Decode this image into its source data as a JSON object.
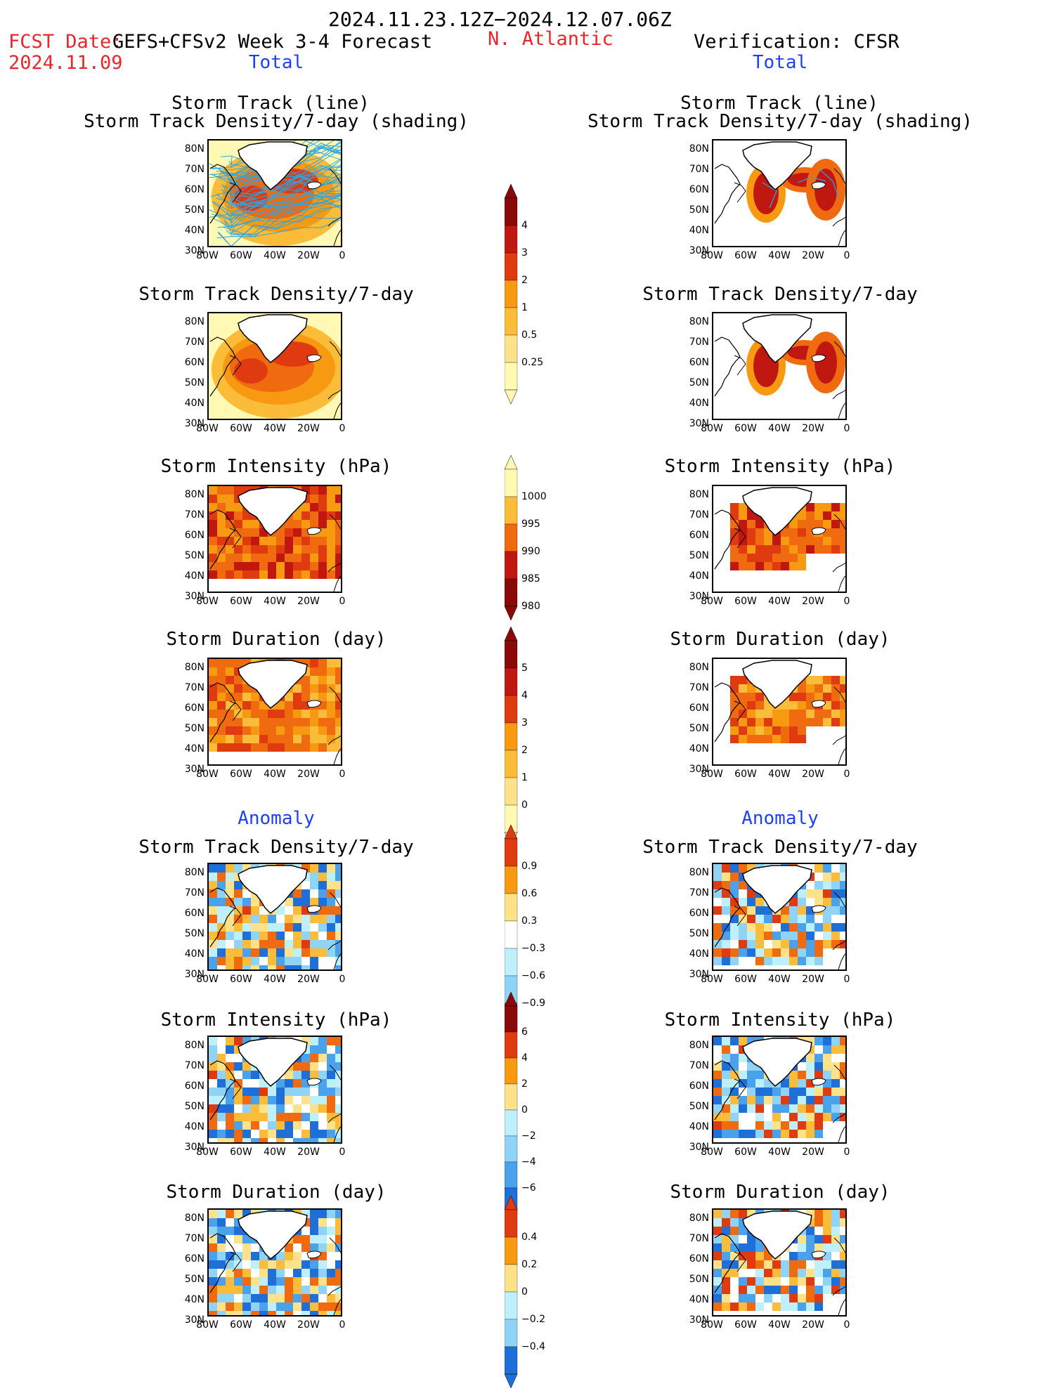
{
  "header": {
    "period": "2024.11.23.12Z−2024.12.07.06Z",
    "fcst_label": "FCST Date:",
    "fcst_model": "GEFS+CFSv2 Week 3-4 Forecast",
    "fcst_date": "2024.11.09",
    "region": "N. Atlantic",
    "verification": "Verification: CFSR",
    "left_total": "Total",
    "right_total": "Total",
    "left_anomaly": "Anomaly",
    "right_anomaly": "Anomaly"
  },
  "panel_titles": {
    "track_line": "Storm Track (line)",
    "track_shading": "Storm Track Density/7-day (shading)",
    "density": "Storm Track Density/7-day",
    "intensity": "Storm Intensity (hPa)",
    "duration": "Storm Duration (day)"
  },
  "axes": {
    "lat_ticks": [
      "80N",
      "70N",
      "60N",
      "50N",
      "40N",
      "30N"
    ],
    "lon_ticks": [
      "80W",
      "60W",
      "40W",
      "20W",
      "0"
    ]
  },
  "colorbars": {
    "density_total": [
      "4",
      "3",
      "2",
      "1",
      "0.5",
      "0.25"
    ],
    "intensity_total": [
      "1000",
      "995",
      "990",
      "985",
      "980"
    ],
    "duration_total": [
      "5",
      "4",
      "3",
      "2",
      "1",
      "0"
    ],
    "density_anom": [
      "0.9",
      "0.6",
      "0.3",
      "−0.3",
      "−0.6",
      "−0.9"
    ],
    "intensity_anom": [
      "6",
      "4",
      "2",
      "0",
      "−2",
      "−4",
      "−6"
    ],
    "duration_anom": [
      "0.4",
      "0.2",
      "0",
      "−0.2",
      "−0.4"
    ]
  },
  "colors": {
    "warm": [
      "#fff9b4",
      "#fde28a",
      "#fbbc3a",
      "#f79a12",
      "#f06a10",
      "#e03a10",
      "#c01810",
      "#8a0a0a"
    ],
    "cool": [
      "#bdf0fb",
      "#8fd4f6",
      "#4aa2ec",
      "#1e6fd8"
    ],
    "track_line": "#29a6e6",
    "title_red": "#e8262b",
    "title_blue": "#1f3fff"
  }
}
